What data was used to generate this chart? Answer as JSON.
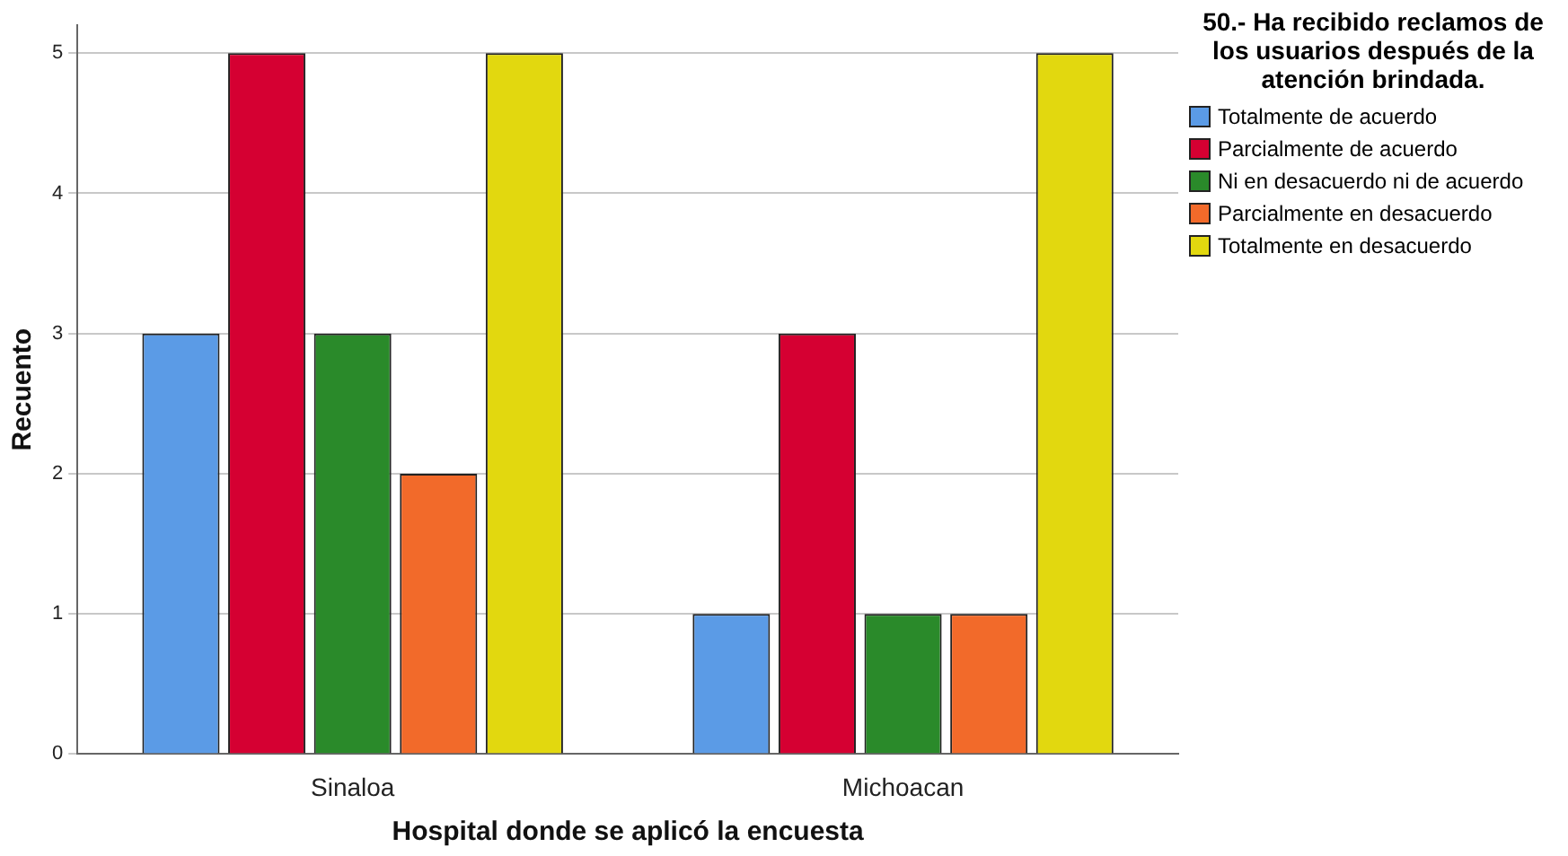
{
  "chart_data": {
    "type": "bar",
    "xlabel": "Hospital donde se aplicó la encuesta",
    "ylabel": "Recuento",
    "legend_title": "50.- Ha recibido reclamos de los usuarios después de la atención brindada.",
    "categories": [
      "Sinaloa",
      "Michoacan"
    ],
    "series": [
      {
        "name": "Totalmente de acuerdo",
        "color": "#5b9be6",
        "values": [
          3,
          1
        ]
      },
      {
        "name": "Parcialmente de acuerdo",
        "color": "#d50032",
        "values": [
          5,
          3
        ]
      },
      {
        "name": "Ni en desacuerdo ni de acuerdo",
        "color": "#2a8a2a",
        "values": [
          3,
          1
        ]
      },
      {
        "name": "Parcialmente en desacuerdo",
        "color": "#f26a2a",
        "values": [
          2,
          1
        ]
      },
      {
        "name": "Totalmente en desacuerdo",
        "color": "#e2d80f",
        "values": [
          5,
          5
        ]
      }
    ],
    "ylim": [
      0,
      5.2
    ],
    "yticks": [
      0,
      1,
      2,
      3,
      4,
      5
    ],
    "grid": "y",
    "legend": "top right"
  }
}
